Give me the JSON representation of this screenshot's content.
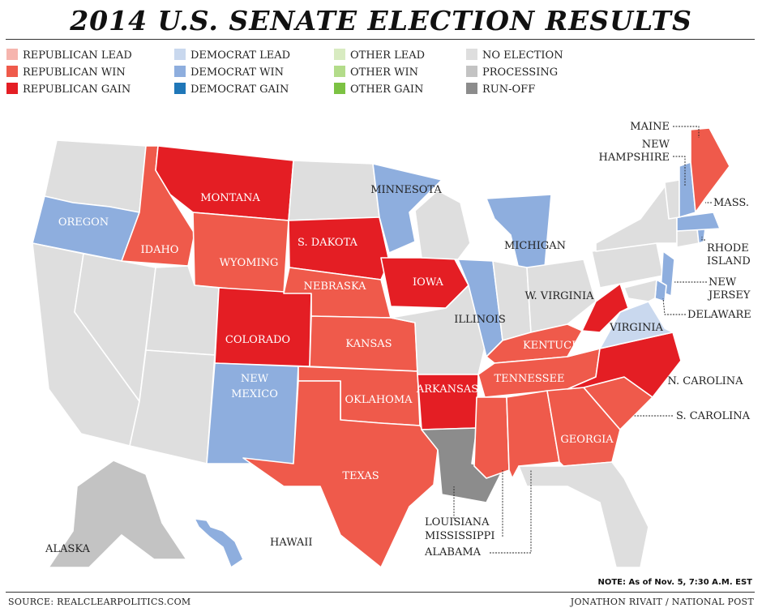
{
  "title": "2014 U.S. SENATE ELECTION RESULTS",
  "legend": [
    {
      "label": "REPUBLICAN LEAD",
      "color": "#f6b5ae"
    },
    {
      "label": "REPUBLICAN WIN",
      "color": "#ef5a4b"
    },
    {
      "label": "REPUBLICAN GAIN",
      "color": "#e41e24"
    },
    {
      "label": "DEMOCRAT LEAD",
      "color": "#c9d8ee"
    },
    {
      "label": "DEMOCRAT WIN",
      "color": "#8eaede"
    },
    {
      "label": "DEMOCRAT GAIN",
      "color": "#1f77b8"
    },
    {
      "label": "OTHER LEAD",
      "color": "#d8ebc1"
    },
    {
      "label": "OTHER WIN",
      "color": "#b3dc8a"
    },
    {
      "label": "OTHER GAIN",
      "color": "#7cc243"
    },
    {
      "label": "NO ELECTION",
      "color": "#dedede"
    },
    {
      "label": "PROCESSING",
      "color": "#c3c3c3"
    },
    {
      "label": "RUN-OFF",
      "color": "#8c8c8c"
    }
  ],
  "states": {
    "OR": {
      "label": "OREGON",
      "result": "DEMOCRAT WIN"
    },
    "ID": {
      "label": "IDAHO",
      "result": "REPUBLICAN WIN"
    },
    "MT": {
      "label": "MONTANA",
      "result": "REPUBLICAN GAIN"
    },
    "WY": {
      "label": "WYOMING",
      "result": "REPUBLICAN WIN"
    },
    "SD": {
      "label": "S. DAKOTA",
      "result": "REPUBLICAN GAIN"
    },
    "NE": {
      "label": "NEBRASKA",
      "result": "REPUBLICAN WIN"
    },
    "CO": {
      "label": "COLORADO",
      "result": "REPUBLICAN GAIN"
    },
    "KS": {
      "label": "KANSAS",
      "result": "REPUBLICAN WIN"
    },
    "OK": {
      "label": "OKLAHOMA",
      "result": "REPUBLICAN WIN"
    },
    "NM": {
      "label": "NEW MEXICO",
      "result": "DEMOCRAT WIN"
    },
    "TX": {
      "label": "TEXAS",
      "result": "REPUBLICAN WIN"
    },
    "MN": {
      "label": "MINNESOTA",
      "result": "DEMOCRAT WIN"
    },
    "IA": {
      "label": "IOWA",
      "result": "REPUBLICAN GAIN"
    },
    "AR": {
      "label": "ARKANSAS",
      "result": "REPUBLICAN GAIN"
    },
    "LA": {
      "label": "LOUISIANA",
      "result": "RUN-OFF"
    },
    "IL": {
      "label": "ILLINOIS",
      "result": "DEMOCRAT WIN"
    },
    "MI": {
      "label": "MICHIGAN",
      "result": "DEMOCRAT WIN"
    },
    "KY": {
      "label": "KENTUCKY",
      "result": "REPUBLICAN WIN"
    },
    "TN": {
      "label": "TENNESSEE",
      "result": "REPUBLICAN WIN"
    },
    "MS": {
      "label": "MISSISSIPPI",
      "result": "REPUBLICAN WIN"
    },
    "AL": {
      "label": "ALABAMA",
      "result": "REPUBLICAN WIN"
    },
    "GA": {
      "label": "GEORGIA",
      "result": "REPUBLICAN WIN"
    },
    "SC": {
      "label": "S. CAROLINA",
      "result": "REPUBLICAN WIN"
    },
    "NC": {
      "label": "N. CAROLINA",
      "result": "REPUBLICAN GAIN"
    },
    "WV": {
      "label": "W. VIRGINIA",
      "result": "REPUBLICAN GAIN"
    },
    "VA": {
      "label": "VIRGINIA",
      "result": "DEMOCRAT LEAD"
    },
    "DE": {
      "label": "DELAWARE",
      "result": "DEMOCRAT WIN"
    },
    "NJ": {
      "label": "NEW JERSEY",
      "result": "DEMOCRAT WIN"
    },
    "RI": {
      "label": "RHODE ISLAND",
      "result": "DEMOCRAT WIN"
    },
    "MA": {
      "label": "MASS.",
      "result": "DEMOCRAT WIN"
    },
    "NH": {
      "label": "NEW HAMPSHIRE",
      "result": "DEMOCRAT WIN"
    },
    "ME": {
      "label": "MAINE",
      "result": "REPUBLICAN WIN"
    },
    "AK": {
      "label": "ALASKA",
      "result": "PROCESSING"
    },
    "HI": {
      "label": "HAWAII",
      "result": "DEMOCRAT WIN"
    }
  },
  "no_election_color": "#dedede",
  "note": "NOTE: As of Nov. 5, 7:30 A.M. EST",
  "source": "SOURCE: REALCLEARPOLITICS.COM",
  "credit": "JONATHON RIVAIT / NATIONAL POST"
}
